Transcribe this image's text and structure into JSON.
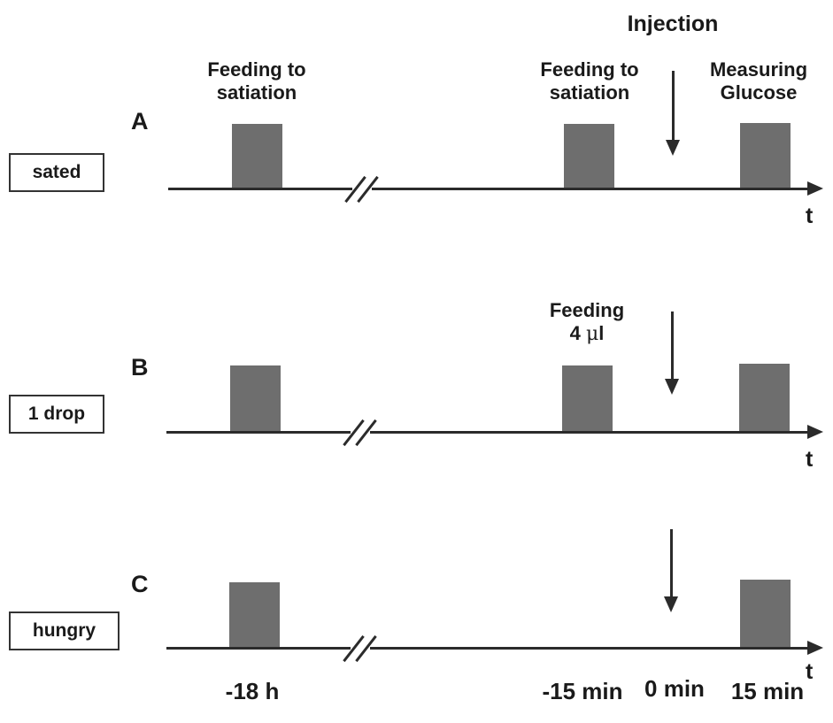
{
  "top": {
    "injection_label": "Injection"
  },
  "panel_a": {
    "letter": "A",
    "condition": "sated",
    "feed1_label_line1": "Feeding to",
    "feed1_label_line2": "satiation",
    "feed2_label_line1": "Feeding to",
    "feed2_label_line2": "satiation",
    "measure_label_line1": "Measuring",
    "measure_label_line2": "Glucose",
    "axis_label": "t"
  },
  "panel_b": {
    "letter": "B",
    "condition": "1 drop",
    "feed_label_line1": "Feeding",
    "feed_label_line2_num": "4",
    "feed_label_line2_unit_mu": "μ",
    "feed_label_line2_unit_l": "l",
    "axis_label": "t"
  },
  "panel_c": {
    "letter": "C",
    "condition": "hungry",
    "axis_label": "t"
  },
  "time_points": {
    "t1": "-18 h",
    "t2": "-15 min",
    "t3": "0 min",
    "t4": "15 min"
  },
  "colors": {
    "bar": "#6e6e6e",
    "axis": "#2b2b2b"
  }
}
